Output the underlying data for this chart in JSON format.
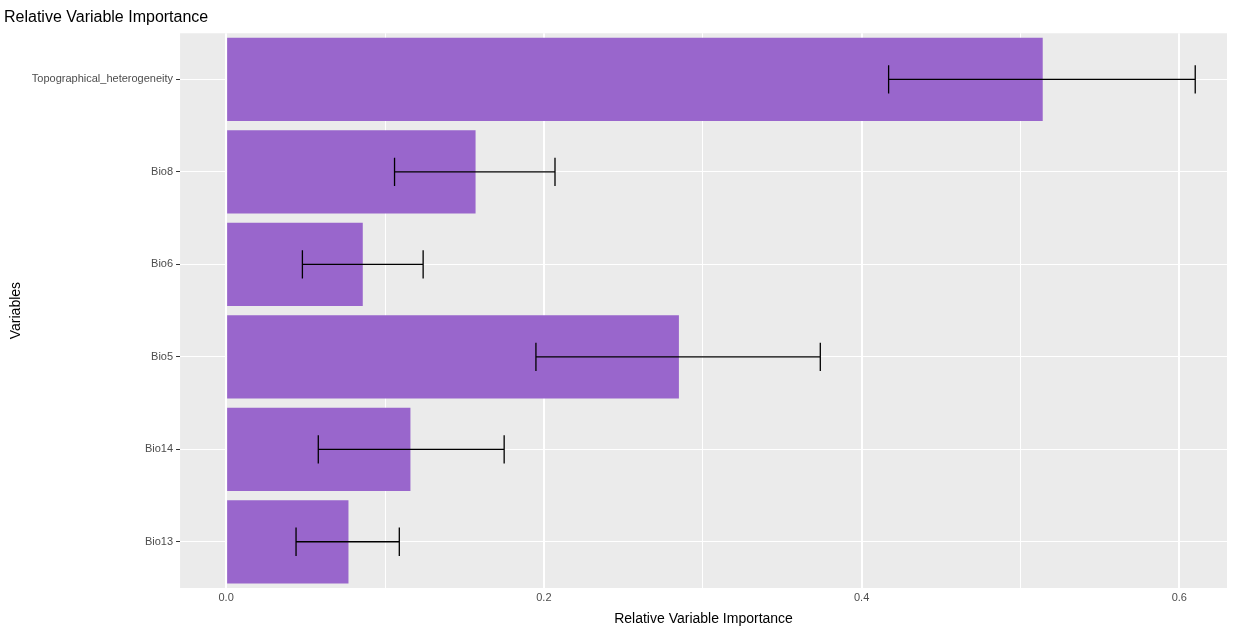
{
  "chart_data": {
    "type": "bar",
    "orientation": "horizontal",
    "title": "Relative Variable Importance",
    "xlabel": "Relative Variable Importance",
    "ylabel": "Variables",
    "categories": [
      "Topographical_heterogeneity",
      "Bio8",
      "Bio6",
      "Bio5",
      "Bio14",
      "Bio13"
    ],
    "values": [
      0.514,
      0.157,
      0.086,
      0.285,
      0.116,
      0.077
    ],
    "errors": [
      [
        0.417,
        0.61
      ],
      [
        0.106,
        0.207
      ],
      [
        0.048,
        0.124
      ],
      [
        0.195,
        0.374
      ],
      [
        0.058,
        0.175
      ],
      [
        0.044,
        0.109
      ]
    ],
    "color": "#9966cc",
    "xlim": [
      -0.029,
      0.63
    ],
    "xticks": [
      {
        "value": 0,
        "label": "0.0"
      },
      {
        "value": 0.1,
        "label": null
      },
      0.2,
      {
        "value": 0.3,
        "label": null
      },
      0.4,
      {
        "value": 0.5,
        "label": null
      },
      0.6
    ],
    "grid": true,
    "legend": false
  }
}
